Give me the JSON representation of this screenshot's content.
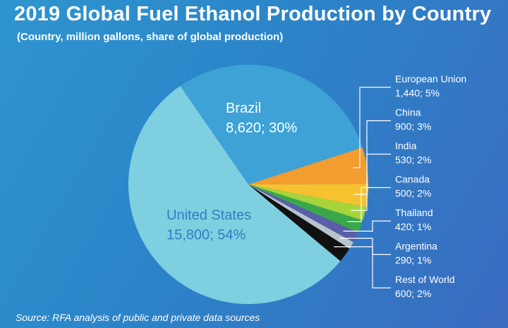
{
  "title": "2019 Global Fuel Ethanol Production by Country",
  "subtitle": "(Country, million gallons, share of global production)",
  "source": "Source: RFA analysis of public and private data sources",
  "chart_data": {
    "type": "pie",
    "title": "2019 Global Fuel Ethanol Production by Country",
    "subtitle": "(Country, million gallons, share of global production)",
    "slices": [
      {
        "label": "United States",
        "value": 15800,
        "share": 54,
        "value_text": "15,800; 54%",
        "color": "#7ecfe0",
        "text_color": "#2f7fc0"
      },
      {
        "label": "Brazil",
        "value": 8620,
        "share": 30,
        "value_text": "8,620; 30%",
        "color": "#3ea2d6",
        "text_color": "#ffffff"
      },
      {
        "label": "European Union",
        "value": 1440,
        "share": 5,
        "value_text": "1,440; 5%",
        "color": "#f39c2f",
        "text_color": "#ffffff"
      },
      {
        "label": "China",
        "value": 900,
        "share": 3,
        "value_text": "900; 3%",
        "color": "#f7c230",
        "text_color": "#ffffff"
      },
      {
        "label": "India",
        "value": 530,
        "share": 2,
        "value_text": "530; 2%",
        "color": "#a6d43a",
        "text_color": "#ffffff"
      },
      {
        "label": "Canada",
        "value": 500,
        "share": 2,
        "value_text": "500; 2%",
        "color": "#3aa84a",
        "text_color": "#ffffff"
      },
      {
        "label": "Thailand",
        "value": 420,
        "share": 1,
        "value_text": "420; 1%",
        "color": "#5a5fa8",
        "text_color": "#ffffff"
      },
      {
        "label": "Argentina",
        "value": 290,
        "share": 1,
        "value_text": "290; 1%",
        "color": "#b9c3cc",
        "text_color": "#ffffff"
      },
      {
        "label": "Rest of World",
        "value": 600,
        "share": 2,
        "value_text": "600; 2%",
        "color": "#111111",
        "text_color": "#ffffff"
      }
    ]
  }
}
